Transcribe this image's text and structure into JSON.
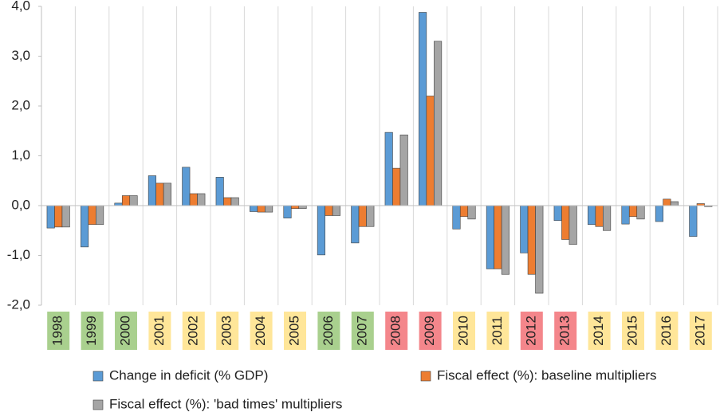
{
  "chart_data": {
    "type": "bar",
    "categories": [
      "1998",
      "1999",
      "2000",
      "2001",
      "2002",
      "2003",
      "2004",
      "2005",
      "2006",
      "2007",
      "2008",
      "2009",
      "2010",
      "2011",
      "2012",
      "2013",
      "2014",
      "2015",
      "2016",
      "2017"
    ],
    "category_colors": [
      "#a9d08e",
      "#a9d08e",
      "#a9d08e",
      "#ffe699",
      "#ffe699",
      "#ffe699",
      "#ffe699",
      "#ffe699",
      "#a9d08e",
      "#a9d08e",
      "#f4868b",
      "#f4868b",
      "#ffe699",
      "#ffe699",
      "#f4868b",
      "#f4868b",
      "#ffe699",
      "#ffe699",
      "#ffe699",
      "#ffe699"
    ],
    "series": [
      {
        "name": "Change in deficit (% GDP)",
        "color": "#5b9bd5",
        "values": [
          -0.45,
          -0.83,
          0.05,
          0.6,
          0.77,
          0.57,
          -0.12,
          -0.25,
          -0.99,
          -0.75,
          1.47,
          3.88,
          -0.47,
          -1.27,
          -0.95,
          -0.3,
          -0.38,
          -0.37,
          -0.32,
          -0.62
        ]
      },
      {
        "name": "Fiscal effect (%): baseline multipliers",
        "color": "#ed7d31",
        "values": [
          -0.43,
          -0.38,
          0.2,
          0.45,
          0.24,
          0.16,
          -0.13,
          -0.06,
          -0.2,
          -0.42,
          0.75,
          2.2,
          -0.22,
          -1.27,
          -1.38,
          -0.68,
          -0.42,
          -0.22,
          0.13,
          0.04
        ]
      },
      {
        "name": "Fiscal effect (%): 'bad times' multipliers",
        "color": "#a5a5a5",
        "values": [
          -0.43,
          -0.38,
          0.2,
          0.45,
          0.24,
          0.16,
          -0.13,
          -0.06,
          -0.2,
          -0.42,
          1.42,
          3.3,
          -0.27,
          -1.38,
          -1.76,
          -0.78,
          -0.5,
          -0.27,
          0.08,
          -0.02
        ]
      }
    ],
    "ylim": [
      -2,
      4
    ],
    "yticks": [
      {
        "value": -2,
        "label": "-2,0"
      },
      {
        "value": -1,
        "label": "-1,0"
      },
      {
        "value": 0,
        "label": "0,0"
      },
      {
        "value": 1,
        "label": "1,0"
      },
      {
        "value": 2,
        "label": "2,0"
      },
      {
        "value": 3,
        "label": "3,0"
      },
      {
        "value": 4,
        "label": "4,0"
      }
    ]
  }
}
